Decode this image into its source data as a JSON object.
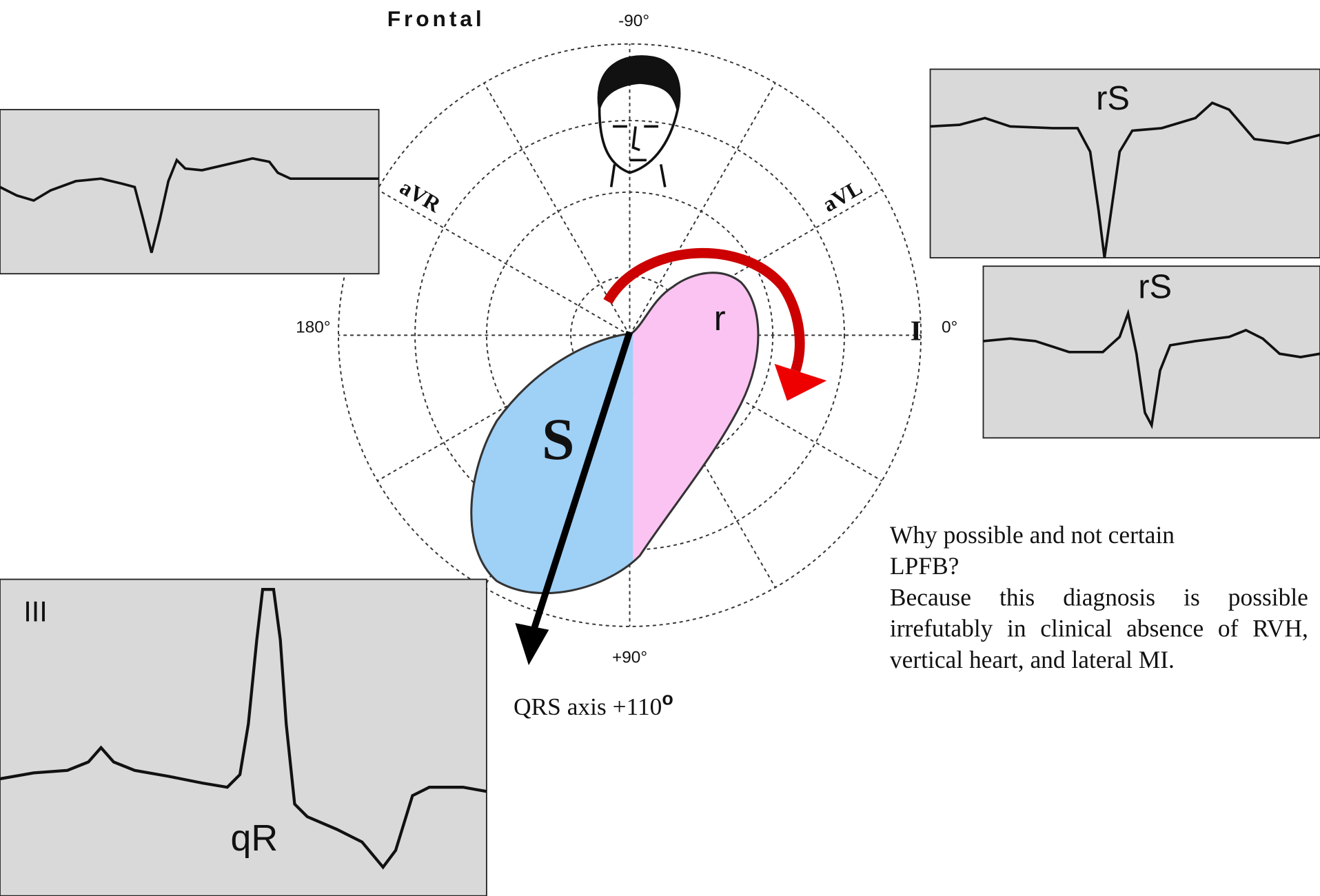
{
  "title": "Frontal",
  "axis": {
    "top": "-90°",
    "left": "180°",
    "right": "0°",
    "bottom": "+90°",
    "avr": "aVR",
    "avl": "aVL",
    "lead_i": "I"
  },
  "loop": {
    "r_label": "r",
    "s_label": "S"
  },
  "ecg": {
    "avr": "",
    "top_right": "rS",
    "mid_right": "rS",
    "lead_iii": "III",
    "lead_iii_pattern": "qR"
  },
  "qrs_axis": {
    "text": "QRS axis +110",
    "degree": "o"
  },
  "note": {
    "question": "Why possible and not certain LPFB?",
    "answer": "Because  this diagnosis is possible irrefutably in clinical absence of RVH, vertical heart, and lateral MI."
  }
}
